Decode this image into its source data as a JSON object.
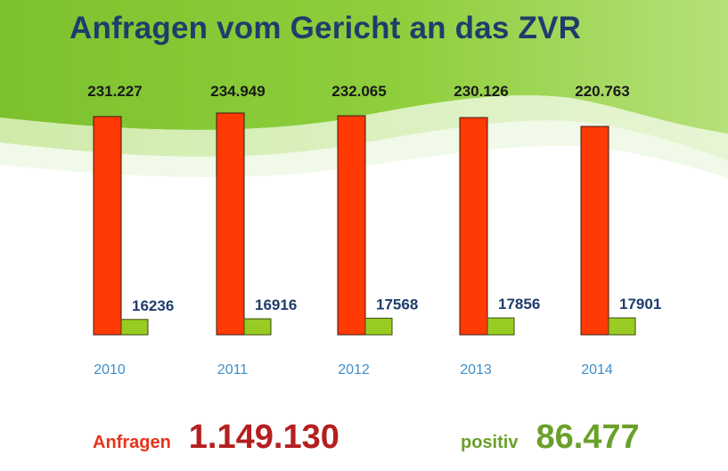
{
  "title": "Anfragen vom Gericht an das ZVR",
  "colors": {
    "anfragen": "#ff3a05",
    "positiv": "#99cc22",
    "title": "#1f3d6b",
    "year_label": "#3f8fc9",
    "value_label": "#1f3d6b"
  },
  "chart_data": {
    "type": "bar",
    "title": "Anfragen vom Gericht an das ZVR",
    "categories": [
      "2010",
      "2011",
      "2012",
      "2013",
      "2014"
    ],
    "series": [
      {
        "name": "Anfragen",
        "values": [
          231227,
          234949,
          232065,
          230126,
          220763
        ],
        "labels": [
          "231.227",
          "234.949",
          "232.065",
          "230.126",
          "220.763"
        ]
      },
      {
        "name": "positiv",
        "values": [
          16236,
          16916,
          17568,
          17856,
          17901
        ],
        "labels": [
          "16236",
          "16916",
          "17568",
          "17856",
          "17901"
        ]
      }
    ],
    "xlabel": "",
    "ylabel": "",
    "grid": false,
    "legend": "none"
  },
  "summary": {
    "anfragen_label": "Anfragen",
    "anfragen_total": "1.149.130",
    "positiv_label": "positiv",
    "positiv_total": "86.477"
  }
}
